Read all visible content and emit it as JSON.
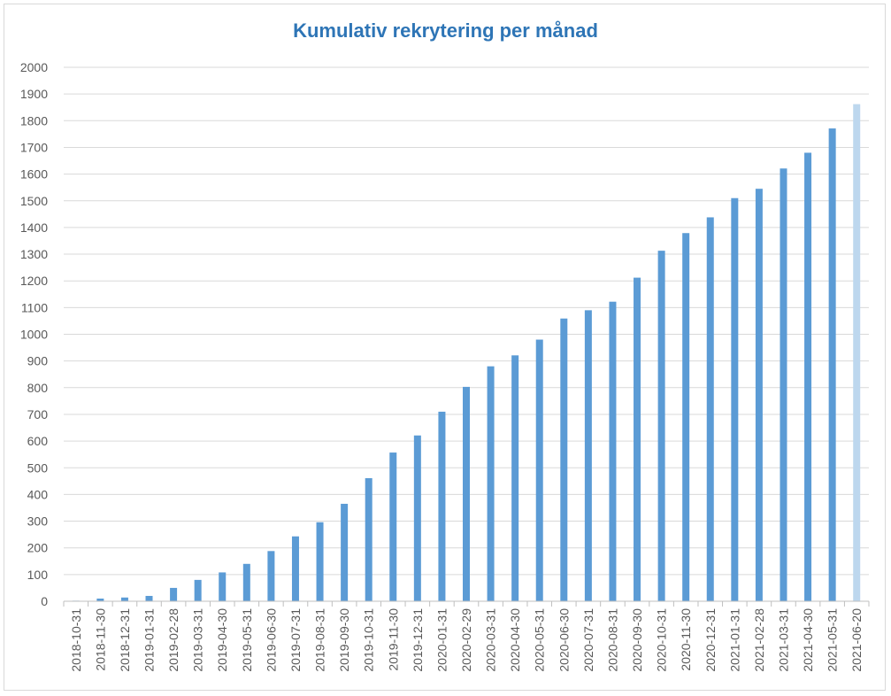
{
  "colors": {
    "title": "#2e75b6",
    "bar": "#5b9bd5",
    "bar_light": "#bdd7ee",
    "grid": "#d9d9d9",
    "axis": "#bfbfbf",
    "tick_text": "#595959"
  },
  "chart_data": {
    "type": "bar",
    "title": "Kumulativ rekrytering per månad",
    "xlabel": "",
    "ylabel": "",
    "ylim": [
      0,
      2000
    ],
    "y_ticks": [
      0,
      100,
      200,
      300,
      400,
      500,
      600,
      700,
      800,
      900,
      1000,
      1100,
      1200,
      1300,
      1400,
      1500,
      1600,
      1700,
      1800,
      1900,
      2000
    ],
    "grid": true,
    "legend": "none",
    "categories": [
      "2018-10-31",
      "2018-11-30",
      "2018-12-31",
      "2019-01-31",
      "2019-02-28",
      "2019-03-31",
      "2019-04-30",
      "2019-05-31",
      "2019-06-30",
      "2019-07-31",
      "2019-08-31",
      "2019-09-30",
      "2019-10-31",
      "2019-11-30",
      "2019-12-31",
      "2020-01-31",
      "2020-02-29",
      "2020-03-31",
      "2020-04-30",
      "2020-05-31",
      "2020-06-30",
      "2020-07-31",
      "2020-08-31",
      "2020-09-30",
      "2020-10-31",
      "2020-11-30",
      "2020-12-31",
      "2021-01-31",
      "2021-02-28",
      "2021-03-31",
      "2021-04-30",
      "2021-05-31",
      "2021-06-20"
    ],
    "values": [
      2,
      10,
      14,
      20,
      50,
      80,
      108,
      140,
      188,
      243,
      296,
      365,
      461,
      557,
      621,
      710,
      803,
      880,
      921,
      980,
      1059,
      1090,
      1122,
      1212,
      1313,
      1379,
      1438,
      1510,
      1545,
      1621,
      1680,
      1771,
      1862
    ],
    "highlighted_category": "2021-06-20"
  }
}
